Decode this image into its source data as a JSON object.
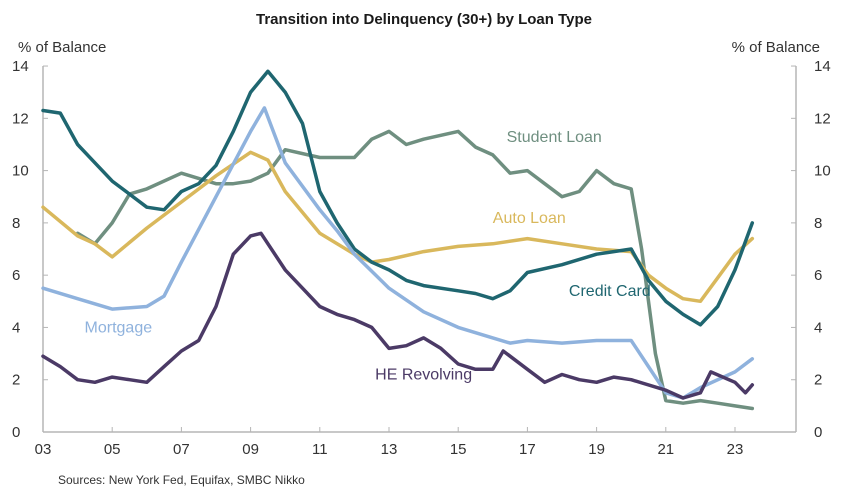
{
  "chart_data": {
    "type": "line",
    "title": "Transition into Delinquency (30+) by Loan Type",
    "ylabel_left": "% of Balance",
    "ylabel_right": "% of Balance",
    "xlabel": "",
    "ylim": [
      0,
      14
    ],
    "yticks": [
      0,
      2,
      4,
      6,
      8,
      10,
      12,
      14
    ],
    "xlim": [
      2003,
      2025
    ],
    "xticks": [
      2003,
      2005,
      2007,
      2009,
      2011,
      2013,
      2015,
      2017,
      2019,
      2021,
      2023
    ],
    "xtick_labels": [
      "03",
      "05",
      "07",
      "09",
      "11",
      "13",
      "15",
      "17",
      "19",
      "21",
      "23"
    ],
    "grid": false,
    "legend": "inline labels",
    "source": "Sources: New York Fed, Equifax, SMBC Nikko",
    "series": [
      {
        "name": "Student Loan",
        "color": "#6f8f80",
        "label_pos": [
          2016.4,
          11.1
        ],
        "x": [
          2004.0,
          2004.5,
          2005.0,
          2005.5,
          2006.0,
          2007.0,
          2008.0,
          2008.5,
          2009.0,
          2009.5,
          2010.0,
          2011.0,
          2012.0,
          2012.5,
          2013.0,
          2013.5,
          2014.0,
          2015.0,
          2015.5,
          2016.0,
          2016.5,
          2017.0,
          2017.5,
          2018.0,
          2018.5,
          2019.0,
          2019.5,
          2020.0,
          2020.3,
          2020.7,
          2021.0,
          2021.5,
          2022.0,
          2022.5,
          2023.0,
          2023.5
        ],
        "y": [
          7.6,
          7.2,
          8.0,
          9.1,
          9.3,
          9.9,
          9.5,
          9.5,
          9.6,
          9.9,
          10.8,
          10.5,
          10.5,
          11.2,
          11.5,
          11.0,
          11.2,
          11.5,
          10.9,
          10.6,
          9.9,
          10.0,
          9.5,
          9.0,
          9.2,
          10.0,
          9.5,
          9.3,
          7.0,
          3.0,
          1.2,
          1.1,
          1.2,
          1.1,
          1.0,
          0.9
        ]
      },
      {
        "name": "Auto Loan",
        "color": "#d9b85c",
        "label_pos": [
          2016.0,
          8.0
        ],
        "x": [
          2003.0,
          2004.0,
          2004.5,
          2005.0,
          2006.0,
          2007.0,
          2008.0,
          2009.0,
          2009.5,
          2010.0,
          2011.0,
          2012.0,
          2012.5,
          2013.0,
          2014.0,
          2015.0,
          2016.0,
          2017.0,
          2018.0,
          2019.0,
          2020.0,
          2020.5,
          2021.0,
          2021.5,
          2022.0,
          2022.5,
          2023.0,
          2023.5
        ],
        "y": [
          8.6,
          7.5,
          7.2,
          6.7,
          7.8,
          8.8,
          9.8,
          10.7,
          10.4,
          9.2,
          7.6,
          6.8,
          6.5,
          6.6,
          6.9,
          7.1,
          7.2,
          7.4,
          7.2,
          7.0,
          6.9,
          6.0,
          5.5,
          5.1,
          5.0,
          5.9,
          6.8,
          7.4
        ]
      },
      {
        "name": "Credit Card",
        "color": "#1f6670",
        "label_pos": [
          2018.2,
          5.2
        ],
        "x": [
          2003.0,
          2003.5,
          2004.0,
          2004.5,
          2005.0,
          2005.5,
          2006.0,
          2006.5,
          2007.0,
          2007.5,
          2008.0,
          2008.5,
          2009.0,
          2009.5,
          2010.0,
          2010.5,
          2011.0,
          2011.5,
          2012.0,
          2012.5,
          2013.0,
          2013.5,
          2014.0,
          2015.0,
          2015.5,
          2016.0,
          2016.5,
          2017.0,
          2018.0,
          2019.0,
          2020.0,
          2020.5,
          2021.0,
          2021.5,
          2022.0,
          2022.5,
          2023.0,
          2023.5
        ],
        "y": [
          12.3,
          12.2,
          11.0,
          10.3,
          9.6,
          9.1,
          8.6,
          8.5,
          9.2,
          9.5,
          10.2,
          11.5,
          13.0,
          13.8,
          13.0,
          11.8,
          9.2,
          8.0,
          7.0,
          6.5,
          6.2,
          5.8,
          5.6,
          5.4,
          5.3,
          5.1,
          5.4,
          6.1,
          6.4,
          6.8,
          7.0,
          5.8,
          5.0,
          4.5,
          4.1,
          4.8,
          6.2,
          8.0
        ]
      },
      {
        "name": "Mortgage",
        "color": "#8fb2dd",
        "label_pos": [
          2004.2,
          3.8
        ],
        "x": [
          2003.0,
          2004.0,
          2005.0,
          2006.0,
          2006.5,
          2007.0,
          2008.0,
          2009.0,
          2009.4,
          2010.0,
          2011.0,
          2011.5,
          2012.0,
          2013.0,
          2014.0,
          2015.0,
          2016.0,
          2016.5,
          2017.0,
          2018.0,
          2019.0,
          2020.0,
          2020.5,
          2021.0,
          2021.5,
          2022.0,
          2023.0,
          2023.5
        ],
        "y": [
          5.5,
          5.1,
          4.7,
          4.8,
          5.2,
          6.5,
          9.0,
          11.5,
          12.4,
          10.3,
          8.5,
          7.7,
          6.8,
          5.5,
          4.6,
          4.0,
          3.6,
          3.4,
          3.5,
          3.4,
          3.5,
          3.5,
          2.5,
          1.5,
          1.3,
          1.7,
          2.3,
          2.8
        ]
      },
      {
        "name": "HE Revolving",
        "color": "#4b3a66",
        "label_pos": [
          2012.6,
          2.0
        ],
        "x": [
          2003.0,
          2003.5,
          2004.0,
          2004.5,
          2005.0,
          2005.5,
          2006.0,
          2006.5,
          2007.0,
          2007.5,
          2008.0,
          2008.5,
          2009.0,
          2009.3,
          2010.0,
          2010.5,
          2011.0,
          2011.5,
          2012.0,
          2012.5,
          2013.0,
          2013.5,
          2014.0,
          2014.5,
          2015.0,
          2015.5,
          2016.0,
          2016.3,
          2017.0,
          2017.5,
          2018.0,
          2018.5,
          2019.0,
          2019.5,
          2020.0,
          2021.0,
          2021.5,
          2022.0,
          2022.3,
          2023.0,
          2023.3,
          2023.5
        ],
        "y": [
          2.9,
          2.5,
          2.0,
          1.9,
          2.1,
          2.0,
          1.9,
          2.5,
          3.1,
          3.5,
          4.8,
          6.8,
          7.5,
          7.6,
          6.2,
          5.5,
          4.8,
          4.5,
          4.3,
          4.0,
          3.2,
          3.3,
          3.6,
          3.2,
          2.6,
          2.4,
          2.4,
          3.1,
          2.4,
          1.9,
          2.2,
          2.0,
          1.9,
          2.1,
          2.0,
          1.6,
          1.3,
          1.5,
          2.3,
          1.9,
          1.5,
          1.8
        ]
      }
    ]
  }
}
